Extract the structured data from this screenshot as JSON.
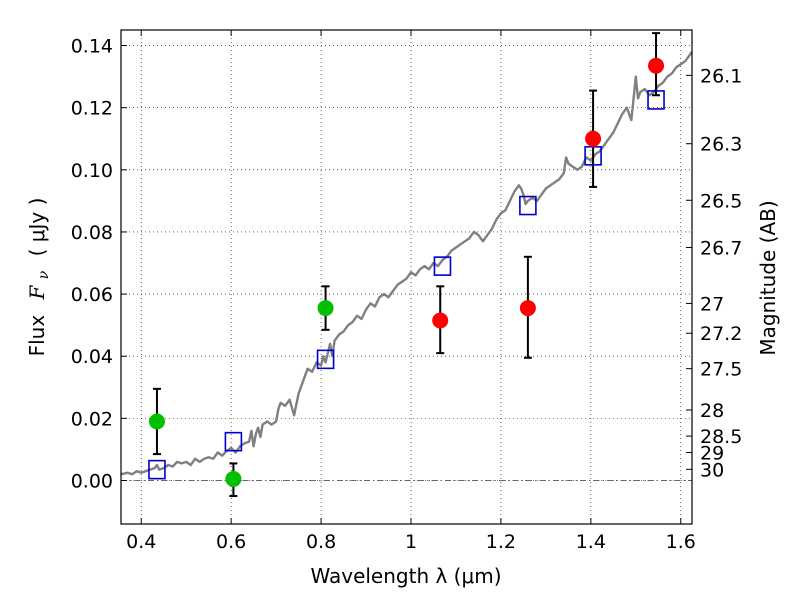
{
  "chart_data": {
    "type": "scatter",
    "xlabel": "Wavelength  λ (μm)",
    "ylabel_parts": {
      "prefix": "Flux",
      "symbol": "F",
      "subscript": "ν",
      "unit": "( μJy )"
    },
    "ylabel2": "Magnitude (AB)",
    "xlim": [
      0.355,
      1.625
    ],
    "ylim": [
      -0.014,
      0.145
    ],
    "grid": true,
    "x_ticks": [
      {
        "value": 0.4,
        "label": "0.4"
      },
      {
        "value": 0.6,
        "label": "0.6"
      },
      {
        "value": 0.8,
        "label": "0.8"
      },
      {
        "value": 1.0,
        "label": "1"
      },
      {
        "value": 1.2,
        "label": "1.2"
      },
      {
        "value": 1.4,
        "label": "1.4"
      },
      {
        "value": 1.6,
        "label": "1.6"
      }
    ],
    "y_ticks": [
      {
        "value": 0.0,
        "label": "0.00"
      },
      {
        "value": 0.02,
        "label": "0.02"
      },
      {
        "value": 0.04,
        "label": "0.04"
      },
      {
        "value": 0.06,
        "label": "0.06"
      },
      {
        "value": 0.08,
        "label": "0.08"
      },
      {
        "value": 0.1,
        "label": "0.10"
      },
      {
        "value": 0.12,
        "label": "0.12"
      },
      {
        "value": 0.14,
        "label": "0.14"
      }
    ],
    "mag_ticks": [
      {
        "label": "26.1",
        "flux": 0.1304
      },
      {
        "label": "26.3",
        "flux": 0.1084
      },
      {
        "label": "26.5",
        "flux": 0.0902
      },
      {
        "label": "26.7",
        "flux": 0.075
      },
      {
        "label": "27",
        "flux": 0.057
      },
      {
        "label": "27.2",
        "flux": 0.0474
      },
      {
        "label": "27.5",
        "flux": 0.036
      },
      {
        "label": "28",
        "flux": 0.0227
      },
      {
        "label": "28.5",
        "flux": 0.0143
      },
      {
        "label": "29",
        "flux": 0.009
      },
      {
        "label": "30",
        "flux": 0.0036
      }
    ],
    "series": [
      {
        "kind": "line",
        "color": "#808080",
        "points": [
          [
            0.355,
            0.002
          ],
          [
            0.37,
            0.0025
          ],
          [
            0.38,
            0.002
          ],
          [
            0.39,
            0.003
          ],
          [
            0.4,
            0.0025
          ],
          [
            0.41,
            0.003
          ],
          [
            0.42,
            0.0035
          ],
          [
            0.43,
            0.004
          ],
          [
            0.435,
            0.005
          ],
          [
            0.44,
            0.0035
          ],
          [
            0.45,
            0.004
          ],
          [
            0.46,
            0.005
          ],
          [
            0.47,
            0.0045
          ],
          [
            0.48,
            0.006
          ],
          [
            0.49,
            0.0055
          ],
          [
            0.5,
            0.006
          ],
          [
            0.51,
            0.005
          ],
          [
            0.52,
            0.007
          ],
          [
            0.53,
            0.006
          ],
          [
            0.54,
            0.007
          ],
          [
            0.55,
            0.0075
          ],
          [
            0.56,
            0.007
          ],
          [
            0.57,
            0.009
          ],
          [
            0.58,
            0.008
          ],
          [
            0.59,
            0.0095
          ],
          [
            0.6,
            0.0105
          ],
          [
            0.61,
            0.009
          ],
          [
            0.62,
            0.011
          ],
          [
            0.63,
            0.012
          ],
          [
            0.64,
            0.0125
          ],
          [
            0.645,
            0.016
          ],
          [
            0.65,
            0.011
          ],
          [
            0.655,
            0.015
          ],
          [
            0.66,
            0.017
          ],
          [
            0.665,
            0.014
          ],
          [
            0.67,
            0.018
          ],
          [
            0.68,
            0.019
          ],
          [
            0.69,
            0.018
          ],
          [
            0.7,
            0.019
          ],
          [
            0.705,
            0.023
          ],
          [
            0.71,
            0.025
          ],
          [
            0.72,
            0.024
          ],
          [
            0.73,
            0.026
          ],
          [
            0.74,
            0.021
          ],
          [
            0.75,
            0.028
          ],
          [
            0.76,
            0.032
          ],
          [
            0.77,
            0.036
          ],
          [
            0.78,
            0.035
          ],
          [
            0.79,
            0.038
          ],
          [
            0.8,
            0.037
          ],
          [
            0.805,
            0.04
          ],
          [
            0.81,
            0.038
          ],
          [
            0.815,
            0.041
          ],
          [
            0.82,
            0.044
          ],
          [
            0.825,
            0.04
          ],
          [
            0.83,
            0.045
          ],
          [
            0.84,
            0.047
          ],
          [
            0.85,
            0.048
          ],
          [
            0.86,
            0.05
          ],
          [
            0.87,
            0.051
          ],
          [
            0.88,
            0.053
          ],
          [
            0.89,
            0.052
          ],
          [
            0.9,
            0.055
          ],
          [
            0.91,
            0.057
          ],
          [
            0.92,
            0.056
          ],
          [
            0.93,
            0.059
          ],
          [
            0.94,
            0.06
          ],
          [
            0.95,
            0.059
          ],
          [
            0.96,
            0.061
          ],
          [
            0.97,
            0.063
          ],
          [
            0.98,
            0.064
          ],
          [
            0.99,
            0.065
          ],
          [
            1.0,
            0.067
          ],
          [
            1.01,
            0.066
          ],
          [
            1.02,
            0.068
          ],
          [
            1.03,
            0.069
          ],
          [
            1.04,
            0.068
          ],
          [
            1.05,
            0.07
          ],
          [
            1.06,
            0.069
          ],
          [
            1.07,
            0.071
          ],
          [
            1.08,
            0.072
          ],
          [
            1.09,
            0.074
          ],
          [
            1.1,
            0.075
          ],
          [
            1.11,
            0.076
          ],
          [
            1.12,
            0.077
          ],
          [
            1.13,
            0.078
          ],
          [
            1.14,
            0.08
          ],
          [
            1.15,
            0.079
          ],
          [
            1.16,
            0.077
          ],
          [
            1.17,
            0.079
          ],
          [
            1.18,
            0.081
          ],
          [
            1.19,
            0.084
          ],
          [
            1.2,
            0.086
          ],
          [
            1.21,
            0.087
          ],
          [
            1.22,
            0.09
          ],
          [
            1.23,
            0.093
          ],
          [
            1.24,
            0.095
          ],
          [
            1.245,
            0.094
          ],
          [
            1.25,
            0.092
          ],
          [
            1.255,
            0.089
          ],
          [
            1.26,
            0.09
          ],
          [
            1.27,
            0.091
          ],
          [
            1.28,
            0.09
          ],
          [
            1.29,
            0.092
          ],
          [
            1.3,
            0.094
          ],
          [
            1.31,
            0.095
          ],
          [
            1.32,
            0.096
          ],
          [
            1.33,
            0.097
          ],
          [
            1.34,
            0.099
          ],
          [
            1.345,
            0.104
          ],
          [
            1.35,
            0.102
          ],
          [
            1.36,
            0.101
          ],
          [
            1.37,
            0.1
          ],
          [
            1.38,
            0.101
          ],
          [
            1.39,
            0.104
          ],
          [
            1.4,
            0.103
          ],
          [
            1.41,
            0.105
          ],
          [
            1.42,
            0.106
          ],
          [
            1.43,
            0.108
          ],
          [
            1.44,
            0.11
          ],
          [
            1.45,
            0.112
          ],
          [
            1.46,
            0.115
          ],
          [
            1.47,
            0.118
          ],
          [
            1.48,
            0.12
          ],
          [
            1.485,
            0.118
          ],
          [
            1.49,
            0.116
          ],
          [
            1.495,
            0.123
          ],
          [
            1.5,
            0.13
          ],
          [
            1.505,
            0.123
          ],
          [
            1.51,
            0.125
          ],
          [
            1.52,
            0.126
          ],
          [
            1.53,
            0.124
          ],
          [
            1.54,
            0.125
          ],
          [
            1.55,
            0.127
          ],
          [
            1.56,
            0.128
          ],
          [
            1.57,
            0.13
          ],
          [
            1.58,
            0.131
          ],
          [
            1.59,
            0.133
          ],
          [
            1.6,
            0.134
          ],
          [
            1.61,
            0.135
          ],
          [
            1.62,
            0.137
          ],
          [
            1.625,
            0.138
          ]
        ]
      },
      {
        "kind": "markers",
        "marker": "square",
        "color": "#0000cc",
        "points": [
          [
            0.435,
            0.0035
          ],
          [
            0.605,
            0.0125
          ],
          [
            0.81,
            0.039
          ],
          [
            1.07,
            0.069
          ],
          [
            1.26,
            0.0885
          ],
          [
            1.405,
            0.1045
          ],
          [
            1.545,
            0.1225
          ]
        ]
      },
      {
        "kind": "markers",
        "marker": "circle",
        "color": "#00c000",
        "points": [
          {
            "x": 0.435,
            "y": 0.019,
            "lo": 0.0085,
            "hi": 0.0295
          },
          {
            "x": 0.605,
            "y": 0.0005,
            "lo": -0.005,
            "hi": 0.0055
          },
          {
            "x": 0.81,
            "y": 0.0555,
            "lo": 0.0485,
            "hi": 0.0625
          }
        ]
      },
      {
        "kind": "markers",
        "marker": "circle",
        "color": "#ff0000",
        "points": [
          {
            "x": 1.065,
            "y": 0.0515,
            "lo": 0.041,
            "hi": 0.0625
          },
          {
            "x": 1.26,
            "y": 0.0555,
            "lo": 0.0395,
            "hi": 0.072
          },
          {
            "x": 1.405,
            "y": 0.11,
            "lo": 0.0945,
            "hi": 0.1255
          },
          {
            "x": 1.545,
            "y": 0.1335,
            "lo": 0.124,
            "hi": 0.144
          }
        ]
      }
    ]
  }
}
